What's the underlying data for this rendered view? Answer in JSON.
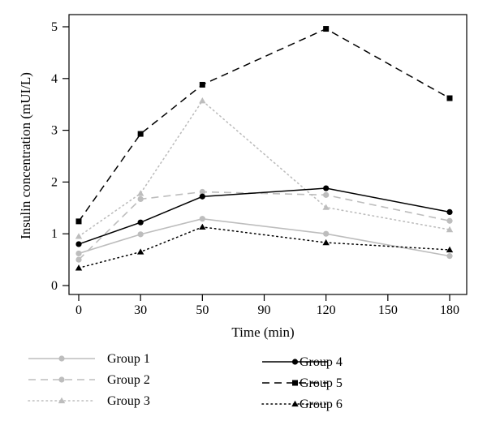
{
  "chart_data": {
    "type": "line",
    "xlabel": "Time (min)",
    "ylabel": "Insulin concentration (mUI/L)",
    "title": "",
    "categories": [
      "0",
      "30",
      "50",
      "90",
      "120",
      "150",
      "180"
    ],
    "ylim": [
      0,
      5
    ],
    "yticks": [
      "0",
      "1",
      "2",
      "3",
      "4",
      "5"
    ],
    "grid": false,
    "legend_position": "bottom",
    "series": [
      {
        "name": "Group 1",
        "x": [
          "0",
          "30",
          "50",
          "120",
          "180"
        ],
        "values": [
          0.62,
          0.99,
          1.29,
          1.0,
          0.57
        ],
        "color": "#bdbdbd",
        "dash": "solid",
        "marker": "circle"
      },
      {
        "name": "Group 2",
        "x": [
          "0",
          "30",
          "50",
          "120",
          "180"
        ],
        "values": [
          0.5,
          1.67,
          1.81,
          1.75,
          1.25
        ],
        "color": "#bdbdbd",
        "dash": "dashed",
        "marker": "circle"
      },
      {
        "name": "Group 3",
        "x": [
          "0",
          "30",
          "50",
          "120",
          "180"
        ],
        "values": [
          0.95,
          1.78,
          3.57,
          1.51,
          1.08
        ],
        "color": "#bdbdbd",
        "dash": "dotted",
        "marker": "triangle"
      },
      {
        "name": "Group 4",
        "x": [
          "0",
          "30",
          "50",
          "120",
          "180"
        ],
        "values": [
          0.8,
          1.22,
          1.72,
          1.88,
          1.42
        ],
        "color": "#000000",
        "dash": "solid",
        "marker": "circle"
      },
      {
        "name": "Group 5",
        "x": [
          "0",
          "30",
          "50",
          "120",
          "180"
        ],
        "values": [
          1.24,
          2.93,
          3.88,
          4.96,
          3.62
        ],
        "color": "#000000",
        "dash": "dashed",
        "marker": "square"
      },
      {
        "name": "Group 6",
        "x": [
          "0",
          "30",
          "50",
          "120",
          "180"
        ],
        "values": [
          0.34,
          0.65,
          1.13,
          0.83,
          0.69
        ],
        "color": "#000000",
        "dash": "dotted",
        "marker": "triangle"
      }
    ]
  }
}
